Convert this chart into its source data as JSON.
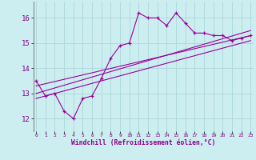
{
  "xlabel": "Windchill (Refroidissement éolien,°C)",
  "x_ticks": [
    0,
    1,
    2,
    3,
    4,
    5,
    6,
    7,
    8,
    9,
    10,
    11,
    12,
    13,
    14,
    15,
    16,
    17,
    18,
    19,
    20,
    21,
    22,
    23
  ],
  "y_ticks": [
    12,
    13,
    14,
    15,
    16
  ],
  "ylim": [
    11.5,
    16.65
  ],
  "xlim": [
    -0.3,
    23.3
  ],
  "bg_color": "#cceef0",
  "grid_color": "#aad8da",
  "line_color": "#990099",
  "series1_x": [
    0,
    1,
    2,
    3,
    4,
    5,
    6,
    7,
    8,
    9,
    10,
    11,
    12,
    13,
    14,
    15,
    16,
    17,
    18,
    19,
    20,
    21,
    22,
    23
  ],
  "series1_y": [
    13.5,
    12.9,
    13.0,
    12.3,
    12.0,
    12.8,
    12.9,
    13.6,
    14.4,
    14.9,
    15.0,
    16.2,
    16.0,
    16.0,
    15.7,
    16.2,
    15.8,
    15.4,
    15.4,
    15.3,
    15.3,
    15.1,
    15.2,
    15.3
  ],
  "series2_x": [
    0,
    23
  ],
  "series2_y": [
    13.0,
    15.5
  ],
  "series3_x": [
    0,
    23
  ],
  "series3_y": [
    13.3,
    15.3
  ],
  "series4_x": [
    0,
    23
  ],
  "series4_y": [
    12.8,
    15.1
  ],
  "tick_color": "#880088",
  "xlabel_color": "#880088"
}
